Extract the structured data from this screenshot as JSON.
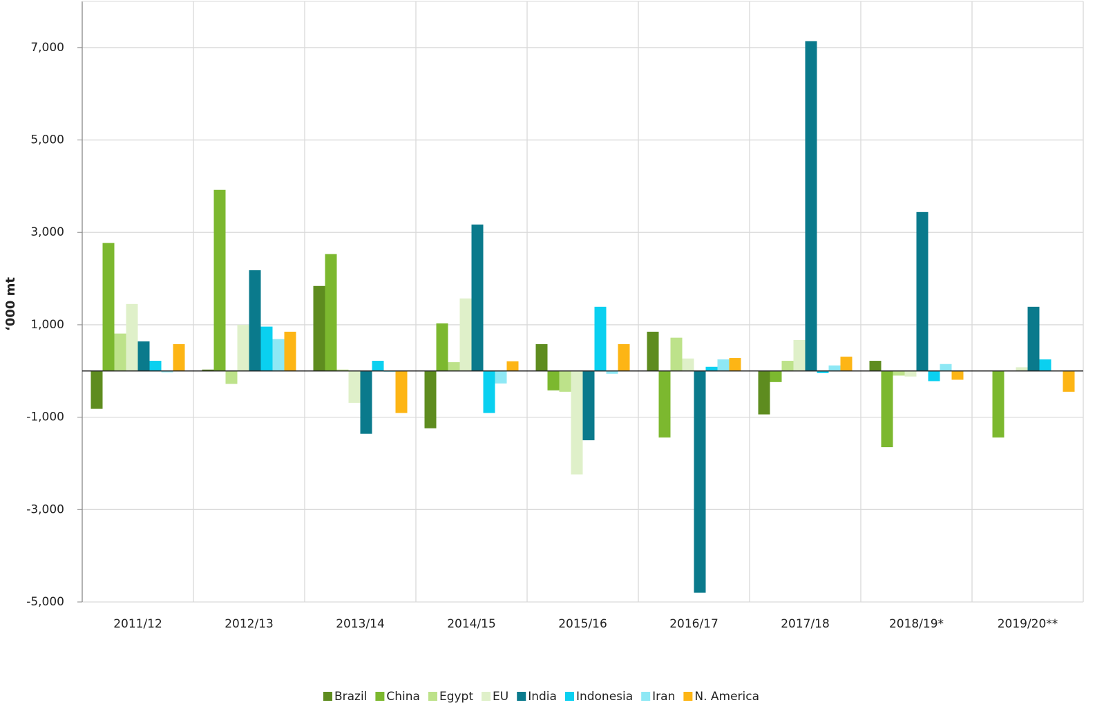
{
  "chart_data": {
    "type": "bar",
    "y_label": "‘000 mt",
    "categories": [
      "2011/12",
      "2012/13",
      "2013/14",
      "2014/15",
      "2015/16",
      "2016/17",
      "2017/18",
      "2018/19*",
      "2019/20**"
    ],
    "series": [
      {
        "name": "Brazil",
        "color": "#5e8c1f",
        "values": [
          -820,
          30,
          1840,
          -1240,
          580,
          850,
          -940,
          220,
          null
        ]
      },
      {
        "name": "China",
        "color": "#7cb82f",
        "values": [
          2770,
          3920,
          2530,
          1030,
          -420,
          -1440,
          -240,
          -1650,
          -1440
        ]
      },
      {
        "name": "Egypt",
        "color": "#bde28a",
        "values": [
          810,
          -280,
          30,
          190,
          -450,
          720,
          220,
          -100,
          null
        ]
      },
      {
        "name": "EU",
        "color": "#dff0c9",
        "values": [
          1450,
          1000,
          -690,
          1570,
          -2240,
          270,
          670,
          -120,
          80
        ]
      },
      {
        "name": "India",
        "color": "#0a7a8c",
        "values": [
          640,
          2180,
          -1360,
          3170,
          -1500,
          -4800,
          7140,
          3440,
          1390
        ]
      },
      {
        "name": "Indonesia",
        "color": "#0ad0f0",
        "values": [
          220,
          960,
          220,
          -910,
          1390,
          90,
          -45,
          -220,
          250
        ]
      },
      {
        "name": "Iran",
        "color": "#8ee8f5",
        "values": [
          -30,
          690,
          -20,
          -270,
          -60,
          250,
          120,
          150,
          null
        ]
      },
      {
        "name": "N. America",
        "color": "#fdb515",
        "values": [
          580,
          850,
          -910,
          210,
          580,
          280,
          310,
          -190,
          -450
        ]
      }
    ],
    "ylim": [
      -5000,
      8000
    ],
    "yticks": [
      {
        "value": -5000,
        "label": "-5,000"
      },
      {
        "value": -3000,
        "label": "-3,000"
      },
      {
        "value": -1000,
        "label": "-1,000"
      },
      {
        "value": 1000,
        "label": "1,000"
      },
      {
        "value": 3000,
        "label": "3,000"
      },
      {
        "value": 5000,
        "label": "5,000"
      },
      {
        "value": 7000,
        "label": "7,000"
      }
    ],
    "grid": true,
    "legend": "bottom"
  }
}
